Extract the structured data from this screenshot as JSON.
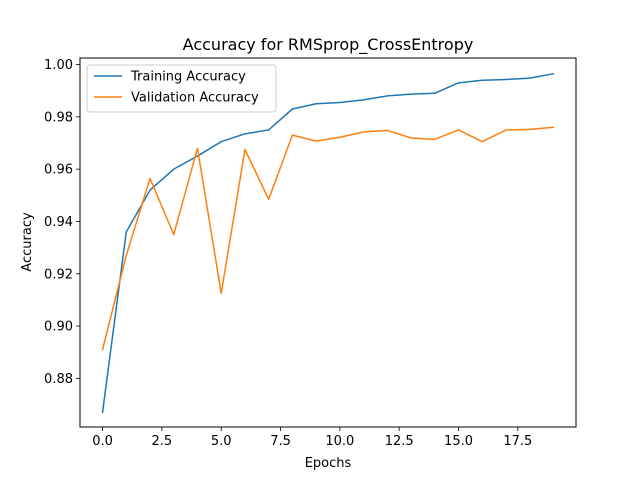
{
  "chart_data": {
    "type": "line",
    "title": "Accuracy for RMSprop_CrossEntropy",
    "xlabel": "Epochs",
    "ylabel": "Accuracy",
    "x": [
      0,
      1,
      2,
      3,
      4,
      5,
      6,
      7,
      8,
      9,
      10,
      11,
      12,
      13,
      14,
      15,
      16,
      17,
      18,
      19
    ],
    "xlim": [
      -0.95,
      19.95
    ],
    "ylim": [
      0.8614,
      1.0025
    ],
    "xticks": [
      0.0,
      2.5,
      5.0,
      7.5,
      10.0,
      12.5,
      15.0,
      17.5
    ],
    "xtick_labels": [
      "0.0",
      "2.5",
      "5.0",
      "7.5",
      "10.0",
      "12.5",
      "15.0",
      "17.5"
    ],
    "yticks": [
      0.88,
      0.9,
      0.92,
      0.94,
      0.96,
      0.98,
      1.0
    ],
    "ytick_labels": [
      "0.88",
      "0.90",
      "0.92",
      "0.94",
      "0.96",
      "0.98",
      "1.00"
    ],
    "grid": false,
    "legend_position": "top-left",
    "series": [
      {
        "name": "Training Accuracy",
        "color": "#1f77b4",
        "values": [
          0.867,
          0.936,
          0.952,
          0.96,
          0.965,
          0.9705,
          0.9735,
          0.975,
          0.983,
          0.985,
          0.9855,
          0.9865,
          0.988,
          0.9887,
          0.989,
          0.993,
          0.994,
          0.9943,
          0.9948,
          0.9965
        ]
      },
      {
        "name": "Validation Accuracy",
        "color": "#ff7f0e",
        "values": [
          0.891,
          0.927,
          0.9565,
          0.935,
          0.968,
          0.9125,
          0.9675,
          0.9485,
          0.973,
          0.9707,
          0.9722,
          0.9742,
          0.9748,
          0.9719,
          0.9714,
          0.975,
          0.9705,
          0.975,
          0.9752,
          0.976
        ]
      }
    ]
  }
}
